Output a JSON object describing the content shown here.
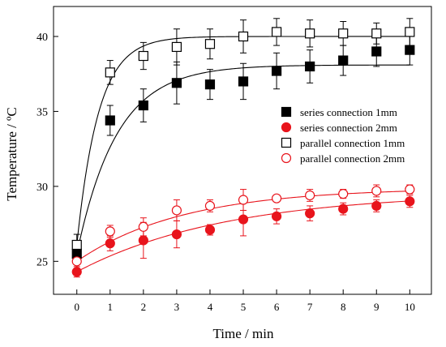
{
  "chart_data": {
    "type": "scatter",
    "xlabel": "Time / min",
    "ylabel": "Temperature / ºC",
    "xlim": [
      -0.7,
      10.65
    ],
    "ylim": [
      22.8,
      42.0
    ],
    "xticks": [
      0,
      1,
      2,
      3,
      4,
      5,
      6,
      7,
      8,
      9,
      10
    ],
    "yticks": [
      25,
      30,
      35,
      40
    ],
    "grid": false,
    "legend_position": "right-middle",
    "series": [
      {
        "name": "series connection 1mm",
        "marker": "square-filled",
        "color": "#000000",
        "x": [
          0,
          1,
          2,
          3,
          4,
          5,
          6,
          7,
          8,
          9,
          10
        ],
        "y": [
          25.5,
          34.4,
          35.4,
          36.9,
          36.8,
          37.0,
          37.7,
          38.0,
          38.4,
          39.0,
          39.1
        ],
        "err": [
          0.6,
          1.0,
          1.1,
          1.4,
          1.0,
          1.2,
          1.2,
          1.1,
          1.0,
          1.0,
          1.0
        ]
      },
      {
        "name": "series connection 2mm",
        "marker": "circle-filled",
        "color": "#e8141c",
        "x": [
          0,
          1,
          2,
          3,
          4,
          5,
          6,
          7,
          8,
          9,
          10
        ],
        "y": [
          24.3,
          26.2,
          26.4,
          26.8,
          27.1,
          27.8,
          28.0,
          28.2,
          28.5,
          28.7,
          29.0
        ],
        "err": [
          0.35,
          0.5,
          1.2,
          0.9,
          0.35,
          1.1,
          0.5,
          0.5,
          0.4,
          0.4,
          0.4
        ]
      },
      {
        "name": "parallel connection 1mm",
        "marker": "square-open",
        "color": "#000000",
        "x": [
          0,
          1,
          2,
          3,
          4,
          5,
          6,
          7,
          8,
          9,
          10
        ],
        "y": [
          26.1,
          37.6,
          38.7,
          39.3,
          39.5,
          40.0,
          40.3,
          40.2,
          40.2,
          40.2,
          40.3
        ],
        "err": [
          0.7,
          0.8,
          0.9,
          1.2,
          1.0,
          1.1,
          0.9,
          0.9,
          0.8,
          0.7,
          0.9
        ]
      },
      {
        "name": "parallel connection 2mm",
        "marker": "circle-open",
        "color": "#e8141c",
        "x": [
          0,
          1,
          2,
          3,
          4,
          5,
          6,
          7,
          8,
          9,
          10
        ],
        "y": [
          25.0,
          27.0,
          27.3,
          28.4,
          28.7,
          29.1,
          29.2,
          29.4,
          29.5,
          29.7,
          29.8
        ],
        "err": [
          0.5,
          0.4,
          0.6,
          0.7,
          0.4,
          0.7,
          0.2,
          0.4,
          0.3,
          0.4,
          0.3
        ]
      }
    ],
    "fits": [
      {
        "series": "series connection 1mm",
        "type": "exponential",
        "y0": 25.5,
        "plateau": 38.1,
        "tau": 1.2,
        "color": "#000000"
      },
      {
        "series": "parallel connection 1mm",
        "type": "exponential",
        "y0": 26.1,
        "plateau": 40.0,
        "tau": 0.65,
        "color": "#000000"
      },
      {
        "series": "series connection 2mm",
        "type": "exponential",
        "y0": 24.3,
        "plateau": 29.6,
        "tau": 4.5,
        "color": "#e8141c"
      },
      {
        "series": "parallel connection 2mm",
        "type": "exponential",
        "y0": 25.0,
        "plateau": 29.9,
        "tau": 3.2,
        "color": "#e8141c"
      }
    ]
  }
}
